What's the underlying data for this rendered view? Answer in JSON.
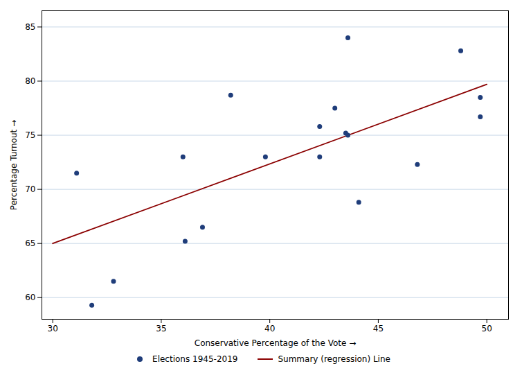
{
  "chart_data": {
    "type": "scatter",
    "xlabel": "Conservative Percentage of the Vote",
    "ylabel": "Percentage Turnout",
    "series": [
      {
        "name": "Elections 1945-2019",
        "type": "scatter",
        "color": "#1F3D7A",
        "x": [
          31.1,
          31.8,
          32.8,
          36.0,
          36.1,
          36.9,
          38.2,
          39.8,
          42.3,
          42.3,
          43.0,
          43.5,
          43.6,
          43.6,
          44.1,
          46.8,
          48.8,
          49.7,
          49.7
        ],
        "values": [
          71.5,
          59.3,
          61.5,
          73.0,
          65.2,
          66.5,
          78.7,
          73.0,
          75.8,
          73.0,
          77.5,
          75.2,
          75.0,
          84.0,
          68.8,
          72.3,
          82.8,
          78.5,
          76.7
        ]
      },
      {
        "name": "Summary (regression) Line",
        "type": "line",
        "color": "#8B0000",
        "x": [
          30,
          50
        ],
        "values": [
          65.0,
          79.7
        ]
      }
    ],
    "xlim": [
      29.5,
      51
    ],
    "ylim": [
      58,
      86.5
    ],
    "xticks": [
      30,
      35,
      40,
      45,
      50
    ],
    "yticks": [
      60,
      65,
      70,
      75,
      80,
      85
    ],
    "grid": "y",
    "legend": "bottom"
  }
}
